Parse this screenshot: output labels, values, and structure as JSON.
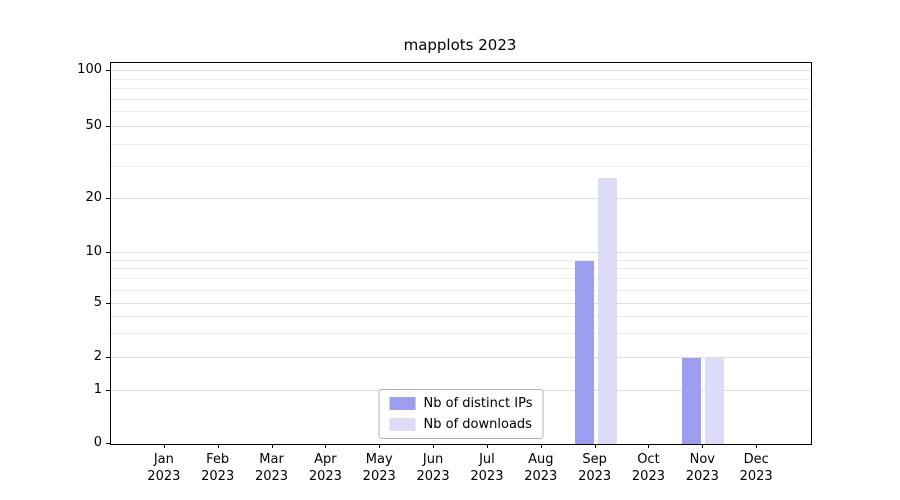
{
  "chart_data": {
    "type": "bar",
    "title": "mapplots 2023",
    "categories": [
      "Jan\n2023",
      "Feb\n2023",
      "Mar\n2023",
      "Apr\n2023",
      "May\n2023",
      "Jun\n2023",
      "Jul\n2023",
      "Aug\n2023",
      "Sep\n2023",
      "Oct\n2023",
      "Nov\n2023",
      "Dec\n2023"
    ],
    "series": [
      {
        "name": "Nb of distinct IPs",
        "color": "#9e9ef0",
        "values": [
          0,
          0,
          0,
          0,
          0,
          0,
          0,
          0,
          9,
          0,
          2,
          0
        ]
      },
      {
        "name": "Nb of downloads",
        "color": "#dcdcf9",
        "values": [
          0,
          0,
          0,
          0,
          0,
          0,
          0,
          0,
          26,
          0,
          2,
          0
        ]
      }
    ],
    "yticks": [
      0,
      1,
      2,
      5,
      10,
      20,
      50,
      100
    ],
    "minor_gridlines": [
      3,
      4,
      6,
      7,
      8,
      9,
      30,
      40,
      60,
      70,
      80,
      90
    ],
    "yaxis_scale": "symlog",
    "ylim": [
      0,
      115
    ],
    "grid": "horizontal",
    "legend_position": "lower center",
    "axis_color": "#000000",
    "gridline_color": "#e8e8e8"
  }
}
